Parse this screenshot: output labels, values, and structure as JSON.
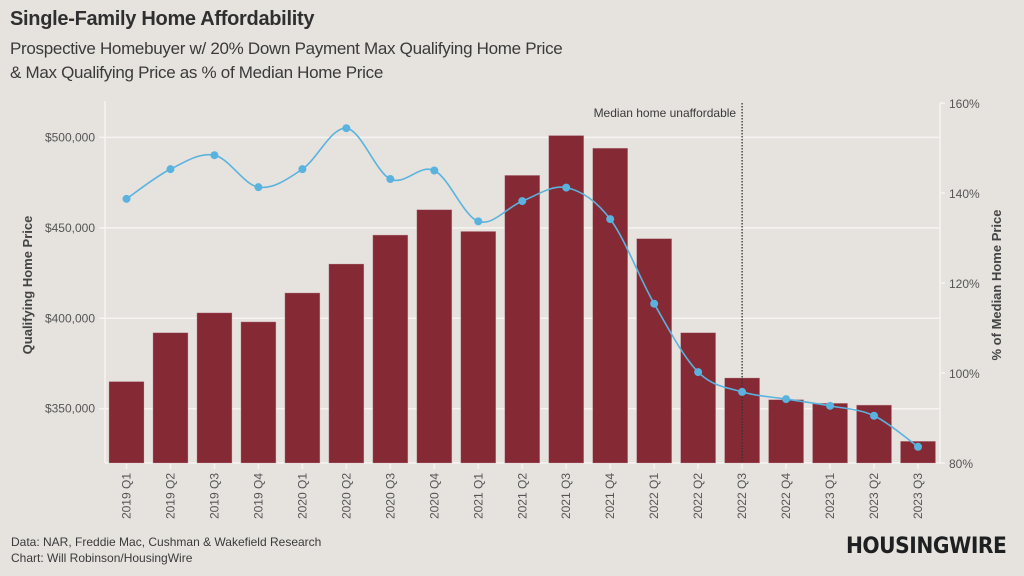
{
  "header": {
    "title": "Single-Family Home Affordability",
    "subtitle_line1": "Prospective Homebuyer w/ 20% Down Payment Max Qualifying Home Price",
    "subtitle_line2": "& Max Qualifying Price as % of Median Home Price"
  },
  "footer": {
    "data_source": "Data: NAR, Freddie Mac, Cushman & Wakefield Research",
    "chart_credit": "Chart: Will Robinson/HousingWire",
    "logo": "HOUSINGWIRE"
  },
  "colors": {
    "background": "#e6e3df",
    "bar": "#852935",
    "line": "#5ab3de",
    "grid": "#f6f4f1",
    "marker_line": "#333333"
  },
  "chart_data": {
    "type": "bar",
    "title": "Single-Family Home Affordability",
    "categories": [
      "2019 Q1",
      "2019 Q2",
      "2019 Q3",
      "2019 Q4",
      "2020 Q1",
      "2020 Q2",
      "2020 Q3",
      "2020 Q4",
      "2021 Q1",
      "2021 Q2",
      "2021 Q3",
      "2021 Q4",
      "2022 Q1",
      "2022 Q2",
      "2022 Q3",
      "2022 Q4",
      "2023 Q1",
      "2023 Q2",
      "2023 Q3"
    ],
    "series": [
      {
        "name": "Max Qualifying Home Price",
        "type": "bar",
        "axis": "left",
        "values": [
          365000,
          392000,
          403000,
          398000,
          414000,
          430000,
          446000,
          460000,
          448000,
          479000,
          501000,
          494000,
          444000,
          392000,
          367000,
          355000,
          353000,
          352000,
          332000
        ]
      },
      {
        "name": "Max Qualifying Price as % of Median Home Price",
        "type": "line",
        "axis": "right",
        "values": [
          138.7,
          145.3,
          148.4,
          141.3,
          145.3,
          154.4,
          143.1,
          145.0,
          133.7,
          138.2,
          141.2,
          134.2,
          115.4,
          100.2,
          95.8,
          94.2,
          92.7,
          90.5,
          83.6
        ]
      }
    ],
    "xlabel": "",
    "ylabel": "Qualifying Home Price",
    "ylabel_right": "% of Median Home Price",
    "ylim": [
      320000,
      519000
    ],
    "ylim_right": [
      80,
      160
    ],
    "yticks": [
      350000,
      400000,
      450000,
      500000
    ],
    "ytick_labels": [
      "$350,000",
      "$400,000",
      "$450,000",
      "$500,000"
    ],
    "yticks_right": [
      80,
      100,
      120,
      140,
      160
    ],
    "ytick_labels_right": [
      "80%",
      "100%",
      "120%",
      "140%",
      "160%"
    ],
    "grid": true,
    "annotations": [
      {
        "text": "Median home unaffordable",
        "category": "2022 Q3",
        "style": "dotted-vertical-line"
      }
    ]
  }
}
